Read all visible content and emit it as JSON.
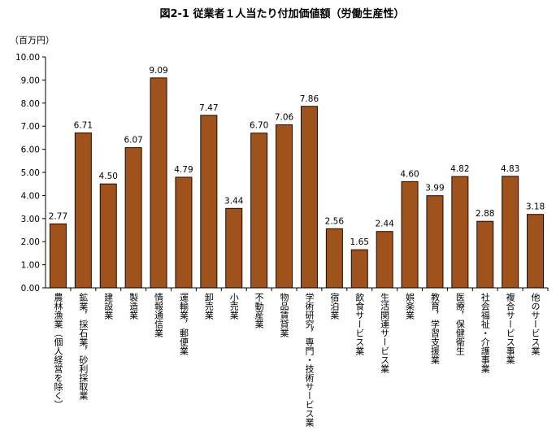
{
  "chart_data": {
    "type": "bar",
    "title": "図2-1 従業者１人当たり付加価値額（労働生産性）",
    "ylabel": "（百万円）",
    "xlabel": "",
    "ylim": [
      0,
      10
    ],
    "y_ticks": [
      "0.00",
      "1.00",
      "2.00",
      "3.00",
      "4.00",
      "5.00",
      "6.00",
      "7.00",
      "8.00",
      "9.00",
      "10.00"
    ],
    "grid": false,
    "bar_color": "#a0521c",
    "categories": [
      "農林漁業（個人経営を除く）",
      "鉱業，採石業，砂利採取業",
      "建設業",
      "製造業",
      "情報通信業",
      "運輸業，郵便業",
      "卸売業",
      "小売業",
      "不動産業",
      "物品賃貸業",
      "学術研究，専門・技術サービス業",
      "宿泊業",
      "飲食サービス業",
      "生活関連サービス業",
      "娯楽業",
      "教育，学習支援業",
      "医療，保健衛生",
      "社会福祉・介護事業",
      "複合サービス事業",
      "他のサービス業"
    ],
    "values": [
      2.77,
      6.71,
      4.5,
      6.07,
      9.09,
      4.79,
      7.47,
      3.44,
      6.7,
      7.06,
      7.86,
      2.56,
      1.65,
      2.44,
      4.6,
      3.99,
      4.82,
      2.88,
      4.83,
      3.18
    ],
    "value_labels": [
      "2.77",
      "6.71",
      "4.50",
      "6.07",
      "9.09",
      "4.79",
      "7.47",
      "3.44",
      "6.70",
      "7.06",
      "7.86",
      "2.56",
      "1.65",
      "2.44",
      "4.60",
      "3.99",
      "4.82",
      "2.88",
      "4.83",
      "3.18"
    ]
  }
}
